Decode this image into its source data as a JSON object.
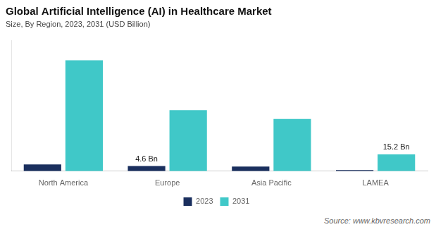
{
  "chart_data": {
    "type": "bar",
    "title": "Global Artificial Intelligence (AI) in Healthcare Market",
    "subtitle": "Size, By Region, 2023, 2031 (USD Billion)",
    "source": "Source: www.kbvresearch.com",
    "categories": [
      "North America",
      "Europe",
      "Asia Pacific",
      "LAMEA"
    ],
    "series": [
      {
        "name": "2023",
        "color": "#1a2f5e",
        "values": [
          6.0,
          4.6,
          4.2,
          1.0
        ]
      },
      {
        "name": "2031",
        "color": "#40c8c8",
        "values": [
          100.0,
          55.0,
          47.0,
          15.2
        ]
      }
    ],
    "annotations": [
      {
        "text": "4.6 Bn",
        "category": "Europe",
        "series": "2023"
      },
      {
        "text": "15.2 Bn",
        "category": "LAMEA",
        "series": "2031"
      }
    ],
    "ylim": [
      0,
      118
    ],
    "grid": false,
    "legend": "bottom",
    "tick_labels": "x"
  }
}
